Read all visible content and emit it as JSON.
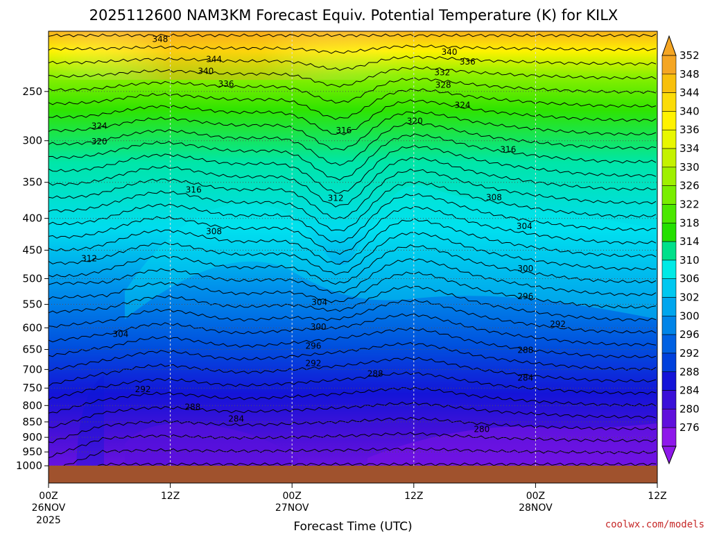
{
  "chart_data": {
    "type": "heatmap",
    "title": "2025112600 NAM3KM Forecast Equiv. Potential Temperature (K) for KILX",
    "xlabel": "Forecast Time (UTC)",
    "ylabel": "",
    "x_ticks": [
      "00Z",
      "12Z",
      "00Z",
      "12Z",
      "00Z",
      "12Z"
    ],
    "x_dates": [
      "26NOV",
      "",
      "27NOV",
      "",
      "28NOV",
      ""
    ],
    "x_year": "2025",
    "x_range_hours": [
      0,
      60
    ],
    "y_axis": "pressure (hPa), log scale, inverted",
    "y_ticks": [
      250,
      300,
      350,
      400,
      450,
      500,
      550,
      600,
      650,
      700,
      750,
      800,
      850,
      900,
      950,
      1000
    ],
    "ylim": [
      200,
      1010
    ],
    "grid": true,
    "colorbar": {
      "labels": [
        352,
        348,
        344,
        340,
        336,
        334,
        330,
        326,
        322,
        318,
        314,
        310,
        306,
        302,
        300,
        296,
        292,
        288,
        284,
        280,
        276
      ],
      "colors": [
        "#f5a623",
        "#f8c00c",
        "#fbdc08",
        "#fff200",
        "#e8f700",
        "#c4f200",
        "#9ff000",
        "#79ee00",
        "#4be800",
        "#24e000",
        "#00e08a",
        "#00eae6",
        "#00c8f0",
        "#00a6ee",
        "#0084e8",
        "#0060e2",
        "#0040dc",
        "#1414d8",
        "#3a10d8",
        "#6010dc",
        "#8e18ea"
      ],
      "extend": "both"
    },
    "contour_labels": [
      {
        "value": 348,
        "hour": 11.0,
        "p": 206
      },
      {
        "value": 344,
        "hour": 16.3,
        "p": 222
      },
      {
        "value": 340,
        "hour": 15.5,
        "p": 232
      },
      {
        "value": 336,
        "hour": 17.5,
        "p": 243
      },
      {
        "value": 340,
        "hour": 39.5,
        "p": 216
      },
      {
        "value": 336,
        "hour": 41.3,
        "p": 224
      },
      {
        "value": 332,
        "hour": 38.8,
        "p": 233
      },
      {
        "value": 328,
        "hour": 38.9,
        "p": 244
      },
      {
        "value": 324,
        "hour": 40.8,
        "p": 263
      },
      {
        "value": 324,
        "hour": 5.0,
        "p": 284
      },
      {
        "value": 320,
        "hour": 5.0,
        "p": 301
      },
      {
        "value": 320,
        "hour": 36.1,
        "p": 279
      },
      {
        "value": 316,
        "hour": 29.1,
        "p": 289
      },
      {
        "value": 316,
        "hour": 45.3,
        "p": 310
      },
      {
        "value": 316,
        "hour": 14.3,
        "p": 360
      },
      {
        "value": 312,
        "hour": 28.3,
        "p": 371
      },
      {
        "value": 308,
        "hour": 43.9,
        "p": 370
      },
      {
        "value": 308,
        "hour": 16.3,
        "p": 420
      },
      {
        "value": 304,
        "hour": 46.9,
        "p": 412
      },
      {
        "value": 312,
        "hour": 4.0,
        "p": 464
      },
      {
        "value": 300,
        "hour": 47.0,
        "p": 482
      },
      {
        "value": 304,
        "hour": 26.7,
        "p": 546
      },
      {
        "value": 296,
        "hour": 47.0,
        "p": 534
      },
      {
        "value": 300,
        "hour": 26.6,
        "p": 598
      },
      {
        "value": 292,
        "hour": 50.2,
        "p": 592
      },
      {
        "value": 304,
        "hour": 7.1,
        "p": 614
      },
      {
        "value": 296,
        "hour": 26.1,
        "p": 642
      },
      {
        "value": 288,
        "hour": 47.0,
        "p": 652
      },
      {
        "value": 292,
        "hour": 26.1,
        "p": 684
      },
      {
        "value": 288,
        "hour": 32.2,
        "p": 711
      },
      {
        "value": 284,
        "hour": 47.0,
        "p": 722
      },
      {
        "value": 292,
        "hour": 9.3,
        "p": 753
      },
      {
        "value": 288,
        "hour": 14.2,
        "p": 804
      },
      {
        "value": 284,
        "hour": 18.5,
        "p": 840
      },
      {
        "value": 280,
        "hour": 42.7,
        "p": 874
      }
    ]
  },
  "footer": {
    "credit": "coolwx.com/models"
  }
}
